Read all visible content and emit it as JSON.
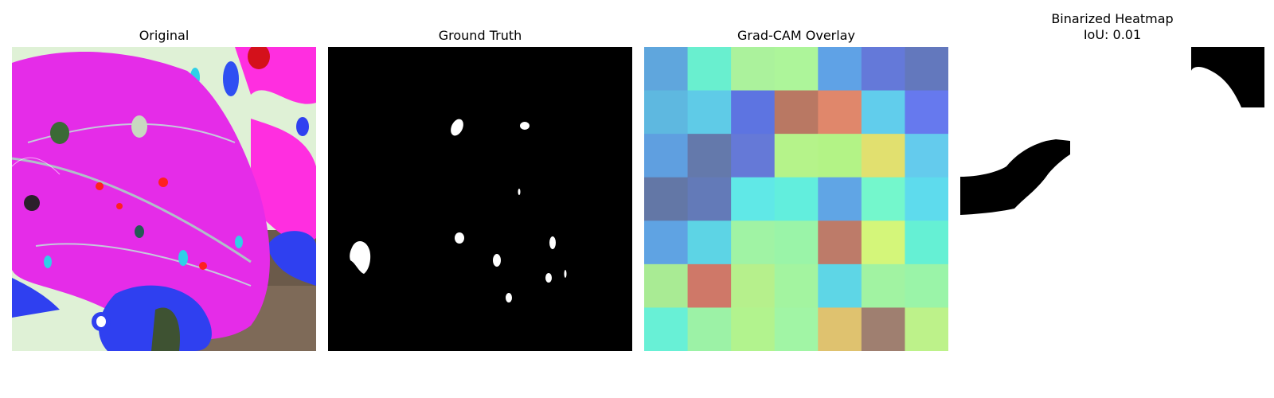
{
  "panels": [
    {
      "title": "Original",
      "image": "leaf-image"
    },
    {
      "title": "Ground Truth",
      "image": "ground-truth-mask"
    },
    {
      "title": "Grad-CAM Overlay",
      "image": "gradcam-heatmap"
    },
    {
      "title": "Binarized Heatmap",
      "subtitle": "IoU: 0.01",
      "image": "binarized-mask"
    }
  ],
  "gradcam": {
    "rows": 7,
    "cols": 7,
    "colors": [
      [
        "#5fa6dd",
        "#69efcf",
        "#abf29c",
        "#adf59a",
        "#5fa2e6",
        "#6479d9",
        "#6378bd"
      ],
      [
        "#5eb8e0",
        "#5fcbe7",
        "#5d74e1",
        "#b97863",
        "#e0876b",
        "#61cdec",
        "#6679ee"
      ],
      [
        "#5f9fe0",
        "#6479ab",
        "#6579d7",
        "#b5f38a",
        "#b3f386",
        "#e1e06f",
        "#64cbed"
      ],
      [
        "#6377a6",
        "#637ab8",
        "#60e8e7",
        "#62eedd",
        "#60a5e5",
        "#74f7cc",
        "#5edbed"
      ],
      [
        "#5fa3e3",
        "#5dd4e5",
        "#a0f3a4",
        "#9af4a8",
        "#bd7b69",
        "#d4f67a",
        "#65f0d4"
      ],
      [
        "#a9eb94",
        "#cf7868",
        "#b6f08c",
        "#a3f4a0",
        "#5ed6e6",
        "#a1f3a2",
        "#9af4a8"
      ],
      [
        "#68f0d6",
        "#9cf2a6",
        "#b2f38e",
        "#a1f5a5",
        "#dfc26f",
        "#9f7f70",
        "#bdf28a"
      ]
    ]
  }
}
